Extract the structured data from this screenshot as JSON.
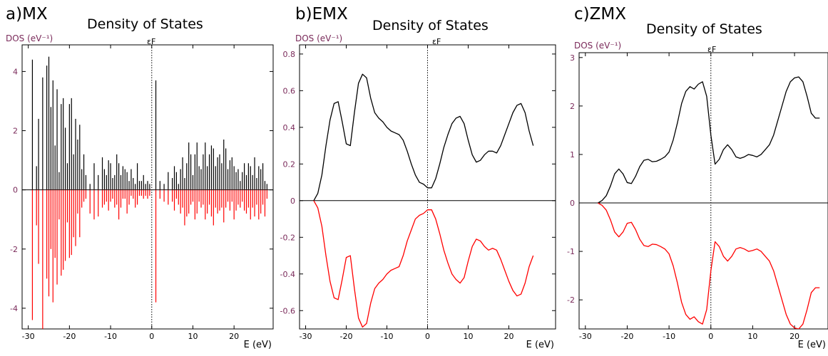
{
  "chart_data": [
    {
      "type": "line",
      "panel_label": "a)MX",
      "title": "Density of States",
      "ylabel": "DOS (eV⁻¹)",
      "xlabel": "E (eV)",
      "fermi_label": "εF",
      "xlim": [
        -31.5,
        29.5
      ],
      "ylim": [
        -4.7,
        4.9
      ],
      "xticks": [
        -30,
        -20,
        -10,
        0,
        10,
        20
      ],
      "yticks": [
        -4,
        -2,
        0,
        2,
        4
      ],
      "grid": false,
      "spikes": true,
      "series": [
        {
          "color": "#000000",
          "x": [
            -29,
            -28,
            -27.5,
            -26.5,
            -25.5,
            -25,
            -24.5,
            -24,
            -23.5,
            -23,
            -22.5,
            -22,
            -21.5,
            -21,
            -20.5,
            -20,
            -19.5,
            -19,
            -18.5,
            -18,
            -17.5,
            -17,
            -16.5,
            -16,
            -15,
            -14,
            -13,
            -12,
            -11.5,
            -11,
            -10.5,
            -10,
            -9.5,
            -9,
            -8.5,
            -8,
            -7.5,
            -7,
            -6.5,
            -6,
            -5.5,
            -5,
            -4.5,
            -4,
            -3.5,
            -3,
            -2.5,
            -2,
            -1.5,
            -1,
            -0.5,
            1,
            2,
            3,
            4,
            5,
            5.5,
            6,
            6.5,
            7,
            7.5,
            8,
            8.5,
            9,
            9.5,
            10,
            10.5,
            11,
            11.5,
            12,
            12.5,
            13,
            13.5,
            14,
            14.5,
            15,
            15.5,
            16,
            16.5,
            17,
            17.5,
            18,
            18.5,
            19,
            19.5,
            20,
            20.5,
            21,
            21.5,
            22,
            22.5,
            23,
            23.5,
            24,
            24.5,
            25,
            25.5,
            26,
            26.5,
            27,
            27.5,
            28
          ],
          "y": [
            4.4,
            0.8,
            2.4,
            3.8,
            4.2,
            4.5,
            2.8,
            3.7,
            1.5,
            3.4,
            0.6,
            2.9,
            3.1,
            2.1,
            0.9,
            2.9,
            3.1,
            1.2,
            2.4,
            1.7,
            2.2,
            0.7,
            1.2,
            0.5,
            0.2,
            0.9,
            0.5,
            1.1,
            0.7,
            0.5,
            1.0,
            0.9,
            0.4,
            0.5,
            1.2,
            0.9,
            0.5,
            0.8,
            0.7,
            0.6,
            0.3,
            0.7,
            0.4,
            0.2,
            0.9,
            0.3,
            0.3,
            0.5,
            0.2,
            0.3,
            0.2,
            3.7,
            0.3,
            0.2,
            0.6,
            0.4,
            0.8,
            0.6,
            0.2,
            0.7,
            1.1,
            0.4,
            0.9,
            1.6,
            1.2,
            0.5,
            1.2,
            1.6,
            0.8,
            0.7,
            1.2,
            1.6,
            0.8,
            1.2,
            1.5,
            1.4,
            0.8,
            1.1,
            1.2,
            0.9,
            1.7,
            1.4,
            0.7,
            1.0,
            1.1,
            0.8,
            0.6,
            0.7,
            0.3,
            0.6,
            0.9,
            0.5,
            0.9,
            0.8,
            0.5,
            1.1,
            0.4,
            0.8,
            0.7,
            0.9,
            0.3,
            0.2
          ]
        },
        {
          "color": "#ff0000",
          "x": [
            -29,
            -28,
            -27.5,
            -26.5,
            -25.5,
            -25,
            -24.5,
            -24,
            -23.5,
            -23,
            -22.5,
            -22,
            -21.5,
            -21,
            -20.5,
            -20,
            -19.5,
            -19,
            -18.5,
            -18,
            -17.5,
            -17,
            -16.5,
            -16,
            -15,
            -14,
            -13,
            -12,
            -11.5,
            -11,
            -10.5,
            -10,
            -9.5,
            -9,
            -8.5,
            -8,
            -7.5,
            -7,
            -6.5,
            -6,
            -5.5,
            -5,
            -4.5,
            -4,
            -3.5,
            -3,
            -2.5,
            -2,
            -1.5,
            -1,
            -0.5,
            1,
            2,
            3,
            4,
            5,
            5.5,
            6,
            6.5,
            7,
            7.5,
            8,
            8.5,
            9,
            9.5,
            10,
            10.5,
            11,
            11.5,
            12,
            12.5,
            13,
            13.5,
            14,
            14.5,
            15,
            15.5,
            16,
            16.5,
            17,
            17.5,
            18,
            18.5,
            19,
            19.5,
            20,
            20.5,
            21,
            21.5,
            22,
            22.5,
            23,
            23.5,
            24,
            24.5,
            25,
            25.5,
            26,
            26.5,
            27,
            27.5,
            28
          ],
          "y": [
            -4.4,
            -1.2,
            -2.5,
            -4.7,
            -3.0,
            -3.6,
            -2.0,
            -3.8,
            -2.3,
            -3.2,
            -1.0,
            -2.9,
            -2.7,
            -2.4,
            -1.1,
            -2.3,
            -2.2,
            -1.6,
            -1.9,
            -0.8,
            -1.6,
            -0.6,
            -0.4,
            -0.3,
            -0.8,
            -1.0,
            -0.9,
            -0.6,
            -0.5,
            -0.4,
            -0.7,
            -0.4,
            -0.3,
            -0.6,
            -0.5,
            -1.0,
            -0.6,
            -0.3,
            -0.3,
            -0.8,
            -0.5,
            -0.2,
            -0.3,
            -0.6,
            -0.5,
            -0.2,
            -0.2,
            -0.3,
            -0.2,
            -0.3,
            -0.2,
            -3.8,
            -0.3,
            -0.4,
            -0.5,
            -0.4,
            -0.7,
            -0.3,
            -0.5,
            -0.8,
            -0.6,
            -1.2,
            -0.9,
            -0.8,
            -0.5,
            -0.4,
            -1.0,
            -0.8,
            -0.4,
            -0.6,
            -0.5,
            -1.0,
            -0.8,
            -0.5,
            -0.9,
            -1.2,
            -0.6,
            -0.8,
            -0.7,
            -0.6,
            -1.1,
            -0.6,
            -0.4,
            -0.7,
            -0.4,
            -1.0,
            -0.7,
            -0.5,
            -0.6,
            -0.4,
            -0.7,
            -0.8,
            -0.6,
            -1.0,
            -0.6,
            -0.9,
            -0.5,
            -1.0,
            -0.8,
            -0.5,
            -0.9,
            -0.3
          ]
        }
      ]
    },
    {
      "type": "line",
      "panel_label": "b)EMX",
      "title": "Density of States",
      "ylabel": "DOS (eV⁻¹)",
      "xlabel": "E (eV)",
      "fermi_label": "εF",
      "xlim": [
        -31.5,
        31.5
      ],
      "ylim": [
        -0.7,
        0.85
      ],
      "xticks": [
        -30,
        -20,
        -10,
        0,
        10,
        20
      ],
      "yticks": [
        -0.6,
        -0.4,
        -0.2,
        0,
        0.2,
        0.4,
        0.6,
        0.8
      ],
      "grid": false,
      "series": [
        {
          "color": "#000000",
          "x": [
            -28,
            -27,
            -26,
            -25,
            -24,
            -23,
            -22,
            -21,
            -20,
            -19,
            -18,
            -17,
            -16,
            -15,
            -14,
            -13,
            -12,
            -11,
            -10,
            -9,
            -8,
            -7,
            -6,
            -5,
            -4,
            -3,
            -2,
            -1,
            0,
            1,
            2,
            3,
            4,
            5,
            6,
            7,
            8,
            9,
            10,
            11,
            12,
            13,
            14,
            15,
            16,
            17,
            18,
            19,
            20,
            21,
            22,
            23,
            24,
            25,
            26
          ],
          "y": [
            0.0,
            0.04,
            0.14,
            0.3,
            0.44,
            0.53,
            0.54,
            0.43,
            0.31,
            0.3,
            0.48,
            0.64,
            0.69,
            0.67,
            0.56,
            0.48,
            0.45,
            0.43,
            0.4,
            0.38,
            0.37,
            0.36,
            0.33,
            0.27,
            0.2,
            0.14,
            0.1,
            0.09,
            0.07,
            0.07,
            0.12,
            0.2,
            0.29,
            0.36,
            0.42,
            0.45,
            0.46,
            0.42,
            0.33,
            0.25,
            0.21,
            0.22,
            0.25,
            0.27,
            0.27,
            0.26,
            0.3,
            0.36,
            0.42,
            0.48,
            0.52,
            0.53,
            0.48,
            0.38,
            0.3
          ]
        },
        {
          "color": "#ff0000",
          "x": [
            -28,
            -27,
            -26,
            -25,
            -24,
            -23,
            -22,
            -21,
            -20,
            -19,
            -18,
            -17,
            -16,
            -15,
            -14,
            -13,
            -12,
            -11,
            -10,
            -9,
            -8,
            -7,
            -6,
            -5,
            -4,
            -3,
            -2,
            -1,
            0,
            1,
            2,
            3,
            4,
            5,
            6,
            7,
            8,
            9,
            10,
            11,
            12,
            13,
            14,
            15,
            16,
            17,
            18,
            19,
            20,
            21,
            22,
            23,
            24,
            25,
            26
          ],
          "y": [
            0.0,
            -0.04,
            -0.14,
            -0.3,
            -0.44,
            -0.53,
            -0.54,
            -0.43,
            -0.31,
            -0.3,
            -0.48,
            -0.64,
            -0.69,
            -0.67,
            -0.56,
            -0.48,
            -0.45,
            -0.43,
            -0.4,
            -0.38,
            -0.37,
            -0.36,
            -0.3,
            -0.22,
            -0.16,
            -0.1,
            -0.08,
            -0.07,
            -0.05,
            -0.05,
            -0.1,
            -0.18,
            -0.27,
            -0.34,
            -0.4,
            -0.43,
            -0.45,
            -0.42,
            -0.33,
            -0.25,
            -0.21,
            -0.22,
            -0.25,
            -0.27,
            -0.26,
            -0.27,
            -0.32,
            -0.38,
            -0.44,
            -0.49,
            -0.52,
            -0.51,
            -0.45,
            -0.36,
            -0.3
          ]
        }
      ]
    },
    {
      "type": "line",
      "panel_label": "c)ZMX",
      "title": "Density of States",
      "ylabel": "DOS (eV⁻¹)",
      "xlabel": "E (eV)",
      "fermi_label": "εF",
      "xlim": [
        -31.5,
        28
      ],
      "ylim": [
        -2.6,
        3.1
      ],
      "xticks": [
        -30,
        -20,
        -10,
        0,
        10,
        20
      ],
      "yticks": [
        -2,
        -1,
        0,
        1,
        2,
        3
      ],
      "grid": false,
      "series": [
        {
          "color": "#000000",
          "x": [
            -27,
            -26,
            -25,
            -24,
            -23,
            -22,
            -21,
            -20,
            -19,
            -18,
            -17,
            -16,
            -15,
            -14,
            -13,
            -12,
            -11,
            -10,
            -9,
            -8,
            -7,
            -6,
            -5,
            -4,
            -3,
            -2,
            -1,
            0,
            1,
            2,
            3,
            4,
            5,
            6,
            7,
            8,
            9,
            10,
            11,
            12,
            13,
            14,
            15,
            16,
            17,
            18,
            19,
            20,
            21,
            22,
            23,
            24,
            25,
            26
          ],
          "y": [
            0.0,
            0.05,
            0.15,
            0.35,
            0.6,
            0.7,
            0.6,
            0.42,
            0.4,
            0.55,
            0.75,
            0.88,
            0.9,
            0.85,
            0.86,
            0.9,
            0.95,
            1.05,
            1.3,
            1.65,
            2.05,
            2.3,
            2.4,
            2.35,
            2.45,
            2.5,
            2.2,
            1.4,
            0.8,
            0.9,
            1.1,
            1.2,
            1.1,
            0.95,
            0.92,
            0.95,
            1.0,
            0.98,
            0.95,
            1.0,
            1.1,
            1.2,
            1.4,
            1.7,
            2.0,
            2.3,
            2.5,
            2.58,
            2.6,
            2.5,
            2.2,
            1.85,
            1.75,
            1.75
          ]
        },
        {
          "color": "#ff0000",
          "x": [
            -27,
            -26,
            -25,
            -24,
            -23,
            -22,
            -21,
            -20,
            -19,
            -18,
            -17,
            -16,
            -15,
            -14,
            -13,
            -12,
            -11,
            -10,
            -9,
            -8,
            -7,
            -6,
            -5,
            -4,
            -3,
            -2,
            -1,
            0,
            1,
            2,
            3,
            4,
            5,
            6,
            7,
            8,
            9,
            10,
            11,
            12,
            13,
            14,
            15,
            16,
            17,
            18,
            19,
            20,
            21,
            22,
            23,
            24,
            25,
            26
          ],
          "y": [
            0.0,
            -0.05,
            -0.15,
            -0.35,
            -0.6,
            -0.7,
            -0.6,
            -0.42,
            -0.4,
            -0.55,
            -0.75,
            -0.88,
            -0.9,
            -0.85,
            -0.86,
            -0.9,
            -0.95,
            -1.05,
            -1.3,
            -1.65,
            -2.05,
            -2.3,
            -2.4,
            -2.35,
            -2.45,
            -2.5,
            -2.2,
            -1.4,
            -0.8,
            -0.9,
            -1.1,
            -1.2,
            -1.1,
            -0.95,
            -0.92,
            -0.95,
            -1.0,
            -0.98,
            -0.95,
            -1.0,
            -1.1,
            -1.2,
            -1.4,
            -1.7,
            -2.0,
            -2.3,
            -2.5,
            -2.58,
            -2.6,
            -2.5,
            -2.2,
            -1.85,
            -1.75,
            -1.75
          ]
        }
      ]
    }
  ]
}
